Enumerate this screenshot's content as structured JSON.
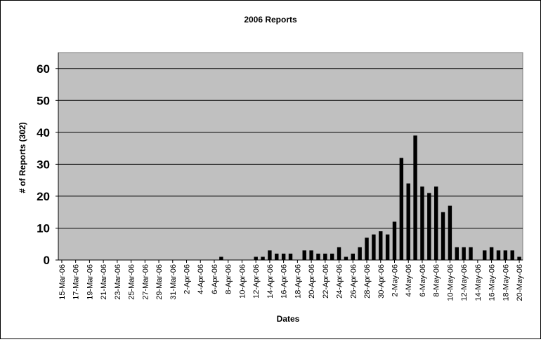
{
  "chart_data": {
    "type": "bar",
    "title": "2006 Reports",
    "xlabel": "Dates",
    "ylabel": "# of Reports (302)",
    "ylim": [
      0,
      65
    ],
    "yticks": [
      0,
      10,
      20,
      30,
      40,
      50,
      60
    ],
    "grid": true,
    "legend": "none",
    "colors": {
      "bar": "#000000",
      "plot_bg": "#c0c0c0",
      "gridline": "#000000"
    },
    "categories": [
      "15-Mar-06",
      "16-Mar-06",
      "17-Mar-06",
      "18-Mar-06",
      "19-Mar-06",
      "20-Mar-06",
      "21-Mar-06",
      "22-Mar-06",
      "23-Mar-06",
      "24-Mar-06",
      "25-Mar-06",
      "26-Mar-06",
      "27-Mar-06",
      "28-Mar-06",
      "29-Mar-06",
      "30-Mar-06",
      "31-Mar-06",
      "1-Apr-06",
      "2-Apr-06",
      "3-Apr-06",
      "4-Apr-06",
      "5-Apr-06",
      "6-Apr-06",
      "7-Apr-06",
      "8-Apr-06",
      "9-Apr-06",
      "10-Apr-06",
      "11-Apr-06",
      "12-Apr-06",
      "13-Apr-06",
      "14-Apr-06",
      "15-Apr-06",
      "16-Apr-06",
      "17-Apr-06",
      "18-Apr-06",
      "19-Apr-06",
      "20-Apr-06",
      "21-Apr-06",
      "22-Apr-06",
      "23-Apr-06",
      "24-Apr-06",
      "25-Apr-06",
      "26-Apr-06",
      "27-Apr-06",
      "28-Apr-06",
      "29-Apr-06",
      "30-Apr-06",
      "1-May-06",
      "2-May-06",
      "3-May-06",
      "4-May-06",
      "5-May-06",
      "6-May-06",
      "7-May-06",
      "8-May-06",
      "9-May-06",
      "10-May-06",
      "11-May-06",
      "12-May-06",
      "13-May-06",
      "14-May-06",
      "15-May-06",
      "16-May-06",
      "17-May-06",
      "18-May-06",
      "19-May-06",
      "20-May-06"
    ],
    "tick_labels": [
      "15-Mar-06",
      "17-Mar-06",
      "19-Mar-06",
      "21-Mar-06",
      "23-Mar-06",
      "25-Mar-06",
      "27-Mar-06",
      "29-Mar-06",
      "31-Mar-06",
      "2-Apr-06",
      "4-Apr-06",
      "6-Apr-06",
      "8-Apr-06",
      "10-Apr-06",
      "12-Apr-06",
      "14-Apr-06",
      "16-Apr-06",
      "18-Apr-06",
      "20-Apr-06",
      "22-Apr-06",
      "24-Apr-06",
      "26-Apr-06",
      "28-Apr-06",
      "30-Apr-06",
      "2-May-06",
      "4-May-06",
      "6-May-06",
      "8-May-06",
      "10-May-06",
      "12-May-06",
      "14-May-06",
      "16-May-06",
      "18-May-06",
      "20-May-06"
    ],
    "values": [
      0,
      0,
      0,
      0,
      0,
      0,
      0,
      0,
      0,
      0,
      0,
      0,
      0,
      0,
      0,
      0,
      0,
      0,
      0,
      0,
      0,
      0,
      0,
      1,
      0,
      0,
      0,
      0,
      1,
      1,
      3,
      2,
      2,
      2,
      0,
      3,
      3,
      2,
      2,
      2,
      4,
      1,
      2,
      4,
      7,
      8,
      9,
      8,
      12,
      32,
      24,
      39,
      23,
      21,
      23,
      15,
      17,
      4,
      4,
      4,
      0,
      3,
      4,
      3,
      3,
      3,
      1
    ]
  }
}
